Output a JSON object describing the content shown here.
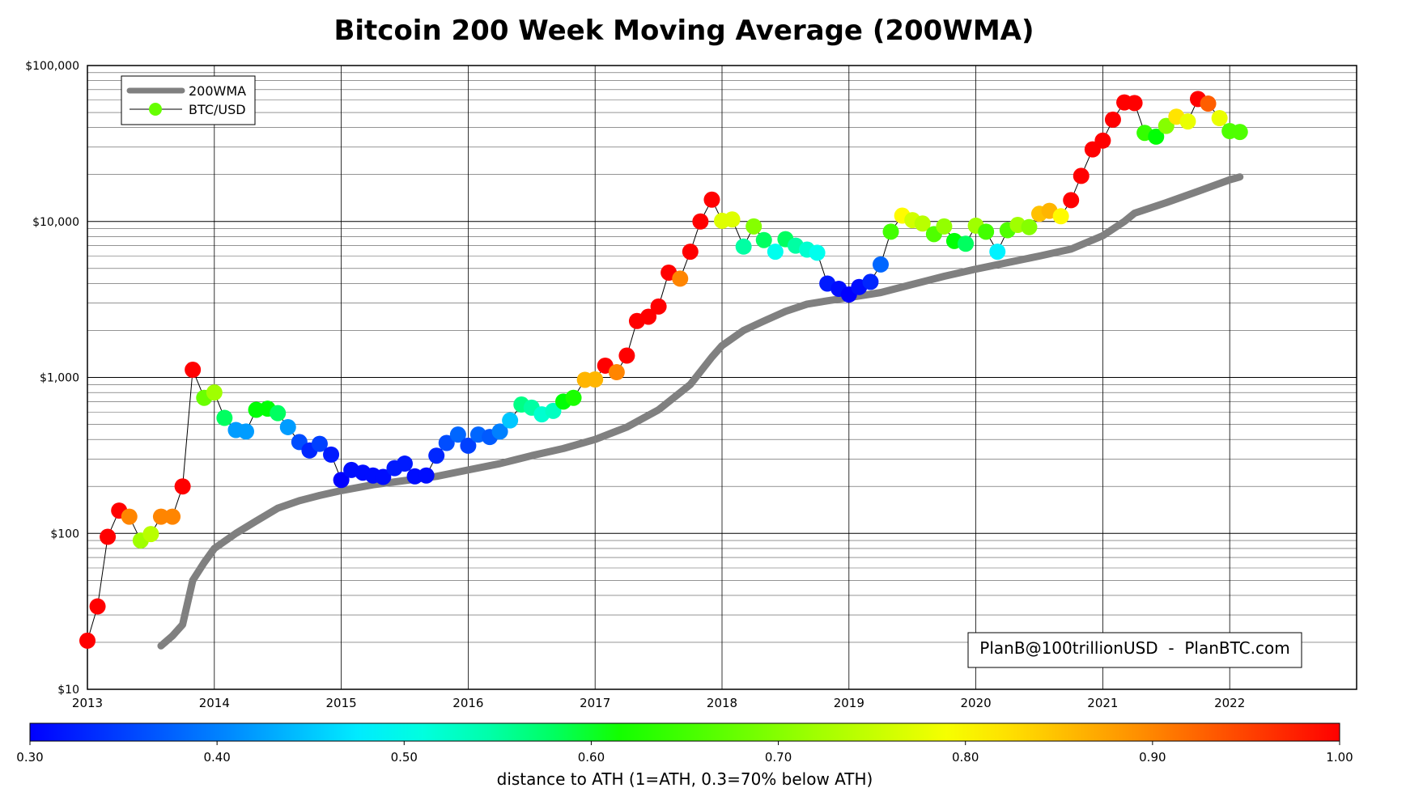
{
  "chart_data": {
    "type": "scatter",
    "title": "Bitcoin 200 Week Moving Average (200WMA)",
    "xlabel": "",
    "ylabel": "",
    "y_scale": "log",
    "ylim": [
      10,
      100000
    ],
    "xlim": [
      2013.0,
      2023.0
    ],
    "grid": true,
    "legend_position": "top-left",
    "x_ticks": [
      {
        "value": 2013,
        "label": "2013"
      },
      {
        "value": 2014,
        "label": "2014"
      },
      {
        "value": 2015,
        "label": "2015"
      },
      {
        "value": 2016,
        "label": "2016"
      },
      {
        "value": 2017,
        "label": "2017"
      },
      {
        "value": 2018,
        "label": "2018"
      },
      {
        "value": 2019,
        "label": "2019"
      },
      {
        "value": 2020,
        "label": "2020"
      },
      {
        "value": 2021,
        "label": "2021"
      },
      {
        "value": 2022,
        "label": "2022"
      }
    ],
    "y_ticks": [
      {
        "value": 10,
        "label": "$10"
      },
      {
        "value": 100,
        "label": "$100"
      },
      {
        "value": 1000,
        "label": "$1,000"
      },
      {
        "value": 10000,
        "label": "$10,000"
      },
      {
        "value": 100000,
        "label": "$100,000"
      }
    ],
    "series": [
      {
        "name": "200WMA",
        "kind": "line",
        "color": "#808080",
        "points": [
          [
            2013.58,
            19
          ],
          [
            2013.67,
            22
          ],
          [
            2013.75,
            26
          ],
          [
            2013.83,
            50
          ],
          [
            2013.92,
            65
          ],
          [
            2014.0,
            80
          ],
          [
            2014.17,
            100
          ],
          [
            2014.33,
            120
          ],
          [
            2014.5,
            145
          ],
          [
            2014.67,
            162
          ],
          [
            2014.83,
            175
          ],
          [
            2015.0,
            188
          ],
          [
            2015.25,
            205
          ],
          [
            2015.5,
            218
          ],
          [
            2015.75,
            232
          ],
          [
            2016.0,
            255
          ],
          [
            2016.25,
            280
          ],
          [
            2016.5,
            315
          ],
          [
            2016.75,
            350
          ],
          [
            2017.0,
            400
          ],
          [
            2017.25,
            480
          ],
          [
            2017.5,
            620
          ],
          [
            2017.75,
            900
          ],
          [
            2017.92,
            1350
          ],
          [
            2018.0,
            1600
          ],
          [
            2018.17,
            2000
          ],
          [
            2018.33,
            2300
          ],
          [
            2018.5,
            2650
          ],
          [
            2018.67,
            2950
          ],
          [
            2018.83,
            3100
          ],
          [
            2019.0,
            3250
          ],
          [
            2019.25,
            3500
          ],
          [
            2019.5,
            3950
          ],
          [
            2019.75,
            4450
          ],
          [
            2020.0,
            4950
          ],
          [
            2020.25,
            5450
          ],
          [
            2020.5,
            6000
          ],
          [
            2020.75,
            6650
          ],
          [
            2021.0,
            8100
          ],
          [
            2021.17,
            10000
          ],
          [
            2021.25,
            11300
          ],
          [
            2021.5,
            13200
          ],
          [
            2021.75,
            15600
          ],
          [
            2022.0,
            18500
          ],
          [
            2022.08,
            19300
          ]
        ]
      },
      {
        "name": "BTC/USD",
        "kind": "scatter-line",
        "line_color": "#000000",
        "points": [
          [
            2013.0,
            20.5,
            1.0
          ],
          [
            2013.08,
            34,
            1.0
          ],
          [
            2013.16,
            95,
            1.0
          ],
          [
            2013.25,
            140,
            1.0
          ],
          [
            2013.33,
            128,
            0.9
          ],
          [
            2013.42,
            90,
            0.72
          ],
          [
            2013.5,
            99,
            0.74
          ],
          [
            2013.58,
            128,
            0.9
          ],
          [
            2013.67,
            128,
            0.9
          ],
          [
            2013.75,
            200,
            1.0
          ],
          [
            2013.83,
            1120,
            1.0
          ],
          [
            2013.92,
            740,
            0.68
          ],
          [
            2014.0,
            800,
            0.72
          ],
          [
            2014.08,
            550,
            0.58
          ],
          [
            2014.17,
            460,
            0.42
          ],
          [
            2014.25,
            450,
            0.42
          ],
          [
            2014.33,
            620,
            0.6
          ],
          [
            2014.42,
            630,
            0.6
          ],
          [
            2014.5,
            590,
            0.58
          ],
          [
            2014.58,
            480,
            0.42
          ],
          [
            2014.67,
            385,
            0.36
          ],
          [
            2014.75,
            340,
            0.33
          ],
          [
            2014.83,
            375,
            0.35
          ],
          [
            2014.92,
            320,
            0.32
          ],
          [
            2015.0,
            220,
            0.3
          ],
          [
            2015.08,
            255,
            0.31
          ],
          [
            2015.17,
            245,
            0.31
          ],
          [
            2015.25,
            235,
            0.31
          ],
          [
            2015.33,
            230,
            0.31
          ],
          [
            2015.42,
            262,
            0.32
          ],
          [
            2015.5,
            280,
            0.32
          ],
          [
            2015.58,
            232,
            0.31
          ],
          [
            2015.67,
            235,
            0.31
          ],
          [
            2015.75,
            315,
            0.33
          ],
          [
            2015.83,
            380,
            0.36
          ],
          [
            2015.92,
            430,
            0.38
          ],
          [
            2016.0,
            365,
            0.35
          ],
          [
            2016.08,
            430,
            0.38
          ],
          [
            2016.17,
            415,
            0.37
          ],
          [
            2016.25,
            450,
            0.4
          ],
          [
            2016.33,
            530,
            0.45
          ],
          [
            2016.42,
            670,
            0.57
          ],
          [
            2016.5,
            640,
            0.55
          ],
          [
            2016.58,
            580,
            0.52
          ],
          [
            2016.67,
            610,
            0.53
          ],
          [
            2016.75,
            700,
            0.6
          ],
          [
            2016.83,
            740,
            0.62
          ],
          [
            2016.92,
            965,
            0.86
          ],
          [
            2017.0,
            970,
            0.86
          ],
          [
            2017.08,
            1190,
            1.0
          ],
          [
            2017.17,
            1080,
            0.9
          ],
          [
            2017.25,
            1380,
            1.0
          ],
          [
            2017.33,
            2300,
            1.0
          ],
          [
            2017.42,
            2450,
            1.0
          ],
          [
            2017.5,
            2850,
            1.0
          ],
          [
            2017.58,
            4700,
            1.0
          ],
          [
            2017.67,
            4300,
            0.9
          ],
          [
            2017.75,
            6400,
            1.0
          ],
          [
            2017.83,
            10000,
            1.0
          ],
          [
            2017.92,
            13800,
            1.0
          ],
          [
            2018.0,
            10100,
            0.77
          ],
          [
            2018.08,
            10300,
            0.77
          ],
          [
            2018.17,
            6900,
            0.55
          ],
          [
            2018.25,
            9300,
            0.7
          ],
          [
            2018.33,
            7600,
            0.58
          ],
          [
            2018.42,
            6400,
            0.5
          ],
          [
            2018.5,
            7700,
            0.58
          ],
          [
            2018.58,
            7000,
            0.55
          ],
          [
            2018.67,
            6600,
            0.52
          ],
          [
            2018.75,
            6300,
            0.5
          ],
          [
            2018.83,
            4000,
            0.32
          ],
          [
            2018.92,
            3700,
            0.31
          ],
          [
            2019.0,
            3400,
            0.3
          ],
          [
            2019.08,
            3800,
            0.31
          ],
          [
            2019.17,
            4100,
            0.33
          ],
          [
            2019.25,
            5300,
            0.38
          ],
          [
            2019.33,
            8600,
            0.65
          ],
          [
            2019.42,
            10900,
            0.8
          ],
          [
            2019.5,
            10200,
            0.76
          ],
          [
            2019.58,
            9700,
            0.74
          ],
          [
            2019.67,
            8300,
            0.66
          ],
          [
            2019.75,
            9300,
            0.71
          ],
          [
            2019.83,
            7500,
            0.6
          ],
          [
            2019.92,
            7200,
            0.58
          ],
          [
            2020.0,
            9400,
            0.72
          ],
          [
            2020.08,
            8600,
            0.65
          ],
          [
            2020.17,
            6400,
            0.48
          ],
          [
            2020.25,
            8800,
            0.66
          ],
          [
            2020.33,
            9500,
            0.72
          ],
          [
            2020.42,
            9200,
            0.7
          ],
          [
            2020.5,
            11200,
            0.85
          ],
          [
            2020.58,
            11700,
            0.86
          ],
          [
            2020.67,
            10800,
            0.8
          ],
          [
            2020.75,
            13700,
            1.0
          ],
          [
            2020.83,
            19600,
            1.0
          ],
          [
            2020.92,
            29000,
            1.0
          ],
          [
            2021.0,
            33000,
            1.0
          ],
          [
            2021.08,
            45000,
            1.0
          ],
          [
            2021.17,
            58000,
            1.0
          ],
          [
            2021.25,
            57500,
            1.0
          ],
          [
            2021.33,
            37000,
            0.64
          ],
          [
            2021.42,
            35000,
            0.6
          ],
          [
            2021.5,
            41000,
            0.7
          ],
          [
            2021.58,
            47000,
            0.82
          ],
          [
            2021.67,
            43800,
            0.78
          ],
          [
            2021.75,
            61000,
            1.0
          ],
          [
            2021.83,
            57000,
            0.93
          ],
          [
            2021.92,
            46000,
            0.78
          ],
          [
            2022.0,
            38000,
            0.66
          ],
          [
            2022.08,
            37500,
            0.66
          ]
        ]
      }
    ],
    "colorbar": {
      "label": "distance to ATH (1=ATH, 0.3=70% below ATH)",
      "min": 0.3,
      "max": 1.0,
      "ticks": [
        {
          "value": 0.3,
          "label": "0.30"
        },
        {
          "value": 0.4,
          "label": "0.40"
        },
        {
          "value": 0.5,
          "label": "0.50"
        },
        {
          "value": 0.6,
          "label": "0.60"
        },
        {
          "value": 0.7,
          "label": "0.70"
        },
        {
          "value": 0.8,
          "label": "0.80"
        },
        {
          "value": 0.9,
          "label": "0.90"
        },
        {
          "value": 1.0,
          "label": "1.00"
        }
      ]
    },
    "annotation": "PlanB@100trillionUSD  -  PlanBTC.com"
  }
}
